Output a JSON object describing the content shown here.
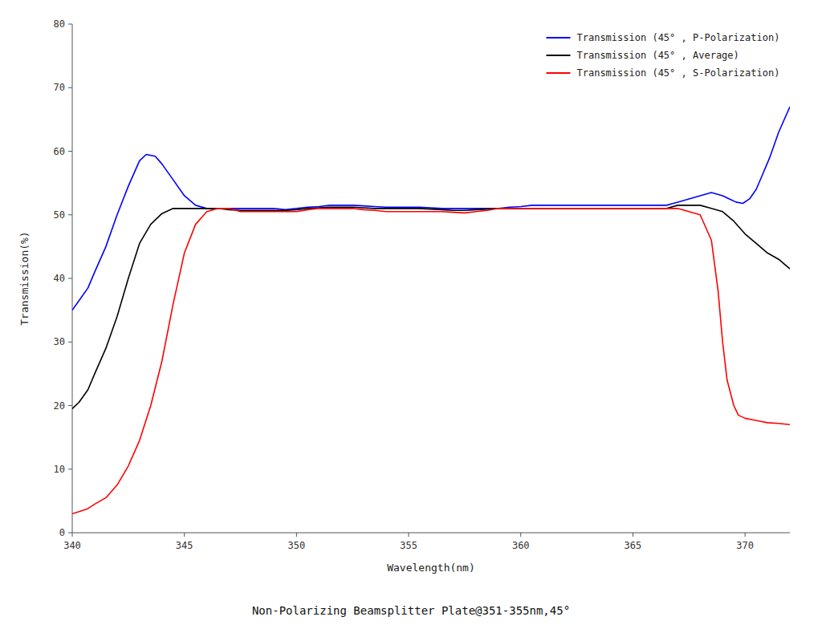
{
  "chart_data": {
    "type": "line",
    "title": "Non-Polarizing Beamsplitter Plate@351-355nm,45°",
    "x_label": "Wavelength(nm)",
    "y_label": "Transmission(%)",
    "xlim": [
      340,
      372
    ],
    "ylim": [
      0,
      80
    ],
    "xticks": [
      340,
      345,
      350,
      355,
      360,
      365,
      370
    ],
    "yticks": [
      0,
      10,
      20,
      30,
      40,
      50,
      60,
      70,
      80
    ],
    "grid": false,
    "legend": "upper right",
    "series": [
      {
        "name": "Transmission (45° , P-Polarization)",
        "color": "blue",
        "x": [
          340.0,
          340.3,
          340.7,
          341.0,
          341.5,
          342.0,
          342.5,
          343.0,
          343.3,
          343.7,
          344.0,
          344.5,
          345.0,
          345.5,
          346.0,
          346.5,
          347.0,
          347.5,
          348.0,
          348.5,
          349.0,
          349.5,
          350.0,
          350.5,
          351.0,
          351.5,
          352.0,
          352.5,
          353.0,
          353.5,
          354.0,
          354.5,
          355.0,
          355.5,
          356.0,
          356.5,
          357.0,
          357.5,
          358.0,
          358.5,
          359.0,
          359.5,
          360.0,
          360.5,
          361.0,
          361.5,
          362.0,
          362.5,
          363.0,
          363.5,
          364.0,
          364.5,
          365.0,
          365.5,
          366.0,
          366.5,
          367.0,
          367.5,
          368.0,
          368.5,
          369.0,
          369.3,
          369.6,
          369.9,
          370.2,
          370.5,
          370.8,
          371.1,
          371.5,
          372.0
        ],
        "values": [
          35.0,
          36.5,
          38.5,
          41.0,
          45.0,
          50.0,
          54.5,
          58.5,
          59.5,
          59.2,
          58.0,
          55.5,
          53.0,
          51.5,
          51.0,
          51.0,
          51.0,
          51.0,
          51.0,
          51.0,
          51.0,
          50.8,
          51.0,
          51.2,
          51.3,
          51.5,
          51.5,
          51.5,
          51.4,
          51.3,
          51.2,
          51.2,
          51.2,
          51.2,
          51.1,
          51.0,
          51.0,
          51.0,
          51.0,
          51.0,
          51.0,
          51.2,
          51.3,
          51.5,
          51.5,
          51.5,
          51.5,
          51.5,
          51.5,
          51.5,
          51.5,
          51.5,
          51.5,
          51.5,
          51.5,
          51.5,
          52.0,
          52.5,
          53.0,
          53.5,
          53.0,
          52.5,
          52.0,
          51.8,
          52.5,
          54.0,
          56.5,
          59.0,
          63.0,
          67.0
        ]
      },
      {
        "name": "Transmission (45° , Average)",
        "color": "black",
        "x": [
          340.0,
          340.3,
          340.7,
          341.0,
          341.5,
          342.0,
          342.5,
          343.0,
          343.5,
          344.0,
          344.5,
          345.0,
          345.5,
          346.0,
          346.5,
          347.0,
          347.5,
          348.0,
          348.5,
          349.0,
          349.5,
          350.0,
          350.5,
          351.0,
          351.5,
          352.0,
          352.5,
          353.0,
          353.5,
          354.0,
          354.5,
          355.0,
          355.5,
          356.0,
          356.5,
          357.0,
          357.5,
          358.0,
          358.5,
          359.0,
          359.5,
          360.0,
          360.5,
          361.0,
          361.5,
          362.0,
          362.5,
          363.0,
          363.5,
          364.0,
          364.5,
          365.0,
          365.5,
          366.0,
          366.5,
          367.0,
          367.5,
          368.0,
          368.5,
          369.0,
          369.5,
          370.0,
          370.5,
          371.0,
          371.5,
          372.0
        ],
        "values": [
          19.5,
          20.5,
          22.5,
          25.0,
          29.0,
          34.0,
          40.0,
          45.5,
          48.5,
          50.2,
          51.0,
          51.0,
          51.0,
          51.0,
          51.0,
          50.8,
          50.7,
          50.7,
          50.7,
          50.7,
          50.7,
          50.8,
          51.0,
          51.1,
          51.2,
          51.2,
          51.2,
          51.1,
          51.0,
          51.0,
          51.0,
          51.0,
          51.0,
          50.9,
          50.8,
          50.7,
          50.7,
          50.8,
          50.9,
          51.0,
          51.0,
          51.0,
          51.0,
          51.0,
          51.0,
          51.0,
          51.0,
          51.0,
          51.0,
          51.0,
          51.0,
          51.0,
          51.0,
          51.0,
          51.0,
          51.5,
          51.5,
          51.5,
          51.0,
          50.5,
          49.0,
          47.0,
          45.5,
          44.0,
          43.0,
          41.5
        ]
      },
      {
        "name": "Transmission (45° , S-Polarization)",
        "color": "red",
        "x": [
          340.0,
          340.3,
          340.7,
          341.0,
          341.5,
          342.0,
          342.5,
          343.0,
          343.5,
          344.0,
          344.5,
          345.0,
          345.5,
          346.0,
          346.5,
          347.0,
          347.5,
          348.0,
          348.5,
          349.0,
          349.5,
          350.0,
          350.5,
          351.0,
          351.5,
          352.0,
          352.5,
          353.0,
          353.5,
          354.0,
          354.5,
          355.0,
          355.5,
          356.0,
          356.5,
          357.0,
          357.5,
          358.0,
          358.5,
          359.0,
          359.5,
          360.0,
          360.5,
          361.0,
          361.5,
          362.0,
          362.5,
          363.0,
          363.5,
          364.0,
          364.5,
          365.0,
          365.5,
          366.0,
          366.5,
          367.0,
          367.5,
          368.0,
          368.5,
          368.8,
          369.0,
          369.2,
          369.5,
          369.7,
          370.0,
          370.3,
          370.7,
          371.0,
          371.5,
          372.0
        ],
        "values": [
          3.0,
          3.3,
          3.8,
          4.5,
          5.5,
          7.5,
          10.5,
          14.5,
          20.0,
          27.0,
          36.0,
          44.0,
          48.5,
          50.5,
          51.0,
          51.0,
          50.5,
          50.5,
          50.5,
          50.5,
          50.5,
          50.5,
          50.8,
          51.0,
          51.0,
          51.0,
          51.0,
          50.8,
          50.7,
          50.5,
          50.5,
          50.5,
          50.5,
          50.5,
          50.5,
          50.4,
          50.3,
          50.5,
          50.7,
          51.0,
          51.0,
          51.0,
          51.0,
          51.0,
          51.0,
          51.0,
          51.0,
          51.0,
          51.0,
          51.0,
          51.0,
          51.0,
          51.0,
          51.0,
          51.0,
          51.0,
          50.5,
          50.0,
          46.0,
          38.0,
          30.0,
          24.0,
          20.0,
          18.5,
          18.0,
          17.8,
          17.5,
          17.3,
          17.2,
          17.0
        ]
      }
    ]
  }
}
